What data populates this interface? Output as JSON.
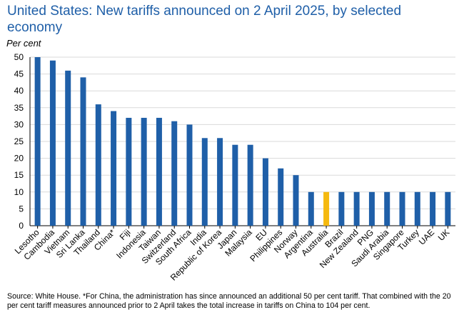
{
  "title": "United States: New tariffs announced on 2 April 2025, by selected economy",
  "unit_label": "Per cent",
  "source": "Source: White House. *For China, the administration has since announced an additional 50 per cent tariff. That combined with the 20 per cent tariff measures announced prior to 2 April takes the total increase in tariffs on China to 104 per cent.",
  "colors": {
    "bar": "#1f5fa8",
    "highlight": "#f5b90f",
    "grid": "#d9d9d9",
    "axis": "#000000",
    "title": "#1f5fa8"
  },
  "chart_data": {
    "type": "bar",
    "title": "United States: New tariffs announced on 2 April 2025, by selected economy",
    "ylabel": "Per cent",
    "xlabel": "",
    "ylim": [
      0,
      50
    ],
    "yticks": [
      0,
      5,
      10,
      15,
      20,
      25,
      30,
      35,
      40,
      45,
      50
    ],
    "grid": true,
    "highlight_category": "Australia",
    "categories": [
      "Lesotho",
      "Cambodia",
      "Vietnam",
      "Sri Lanka",
      "Thailand",
      "China*",
      "Fiji",
      "Indonesia",
      "Taiwan",
      "Switzerland",
      "South Africa",
      "India",
      "Republic of Korea",
      "Japan",
      "Malaysia",
      "EU",
      "Philippines",
      "Norway",
      "Argentina",
      "Australia",
      "Brazil",
      "New Zealand",
      "PNG",
      "Saudi Arabia",
      "Singapore",
      "Turkey",
      "UAE",
      "UK"
    ],
    "values": [
      50,
      49,
      46,
      44,
      36,
      34,
      32,
      32,
      32,
      31,
      30,
      26,
      26,
      24,
      24,
      20,
      17,
      15,
      10,
      10,
      10,
      10,
      10,
      10,
      10,
      10,
      10,
      10
    ]
  }
}
